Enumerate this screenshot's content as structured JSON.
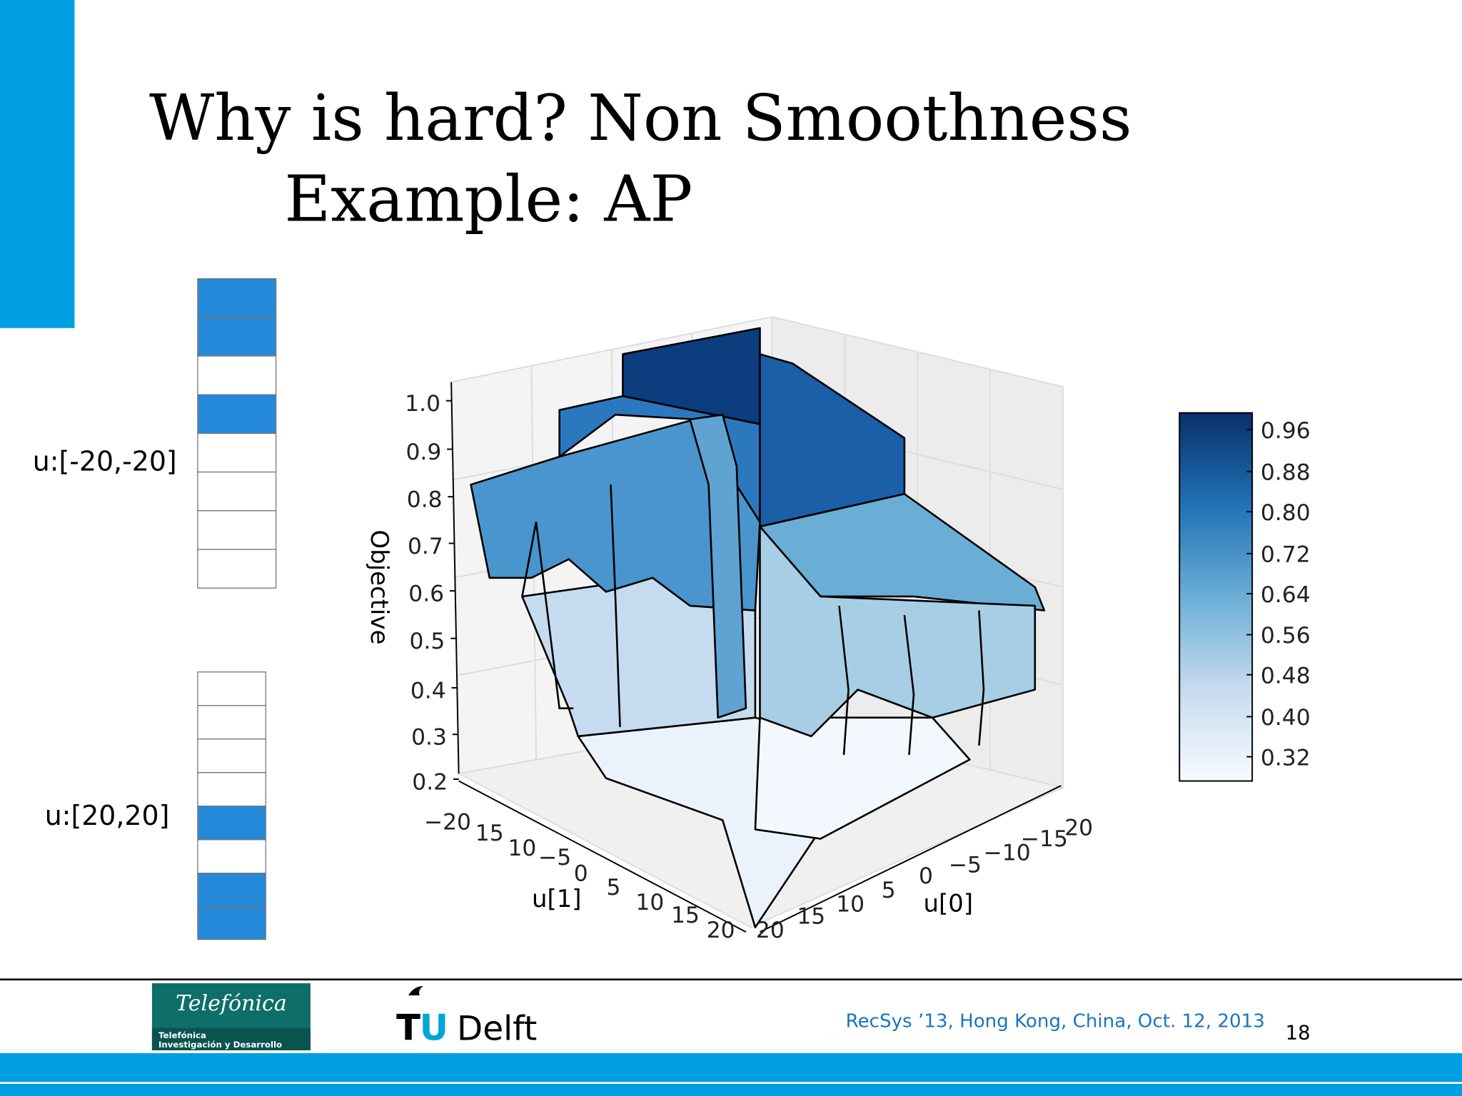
{
  "title_lines": [
    "Why is hard? Non Smoothness",
    "Example: AP"
  ],
  "vectors": [
    {
      "label": "u:[-20,-20]"
    },
    {
      "label": "u:[20,20]"
    }
  ],
  "plot": {
    "z_label": "Objective",
    "z_ticks": [
      "1.0",
      "0.9",
      "0.8",
      "0.7",
      "0.6",
      "0.5",
      "0.4",
      "0.3",
      "0.2"
    ],
    "x_label": "u[1]",
    "x_ticks": [
      "−20",
      "15",
      "10",
      "−5",
      "0",
      "5",
      "10",
      "15",
      "20"
    ],
    "y_label": "u[0]",
    "y_ticks": [
      "20",
      "15",
      "10",
      "5",
      "0",
      "−5",
      "−10",
      "−15",
      "20"
    ],
    "colorbar_ticks": [
      "0.96",
      "0.88",
      "0.80",
      "0.72",
      "0.64",
      "0.56",
      "0.48",
      "0.40",
      "0.32"
    ]
  },
  "footer": {
    "logo1": {
      "name": "Telefónica",
      "subtitle_lines": [
        "Telefónica",
        "Investigación y Desarrollo"
      ]
    },
    "logo2": [
      "T",
      "U",
      "Delft"
    ],
    "event": "RecSys ’13, Hong Kong, China, Oct. 12, 2013",
    "page": "18"
  }
}
